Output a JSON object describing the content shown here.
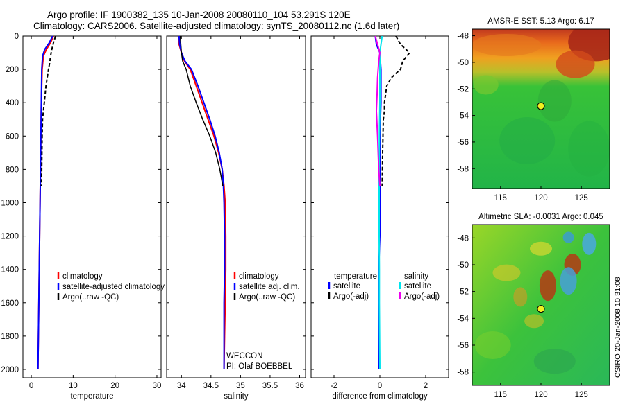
{
  "header": {
    "title_line1": "Argo profile: IF 1900382_135 10-Jan-2008 20080110_104 53.291S 120E",
    "title_line2": "Climatology: CARS2006. Satellite-adjusted climatology: synTS_20080112.nc (1.6d later)"
  },
  "timestamp": "CSIRO 20-Jan-2008 10:31:08",
  "colors": {
    "climatology": "#ff0000",
    "satellite": "#0000ff",
    "argo": "#000000",
    "salinity_diff_satellite": "#00e5ee",
    "salinity_diff_argo": "#ee00ee"
  },
  "chart_data": [
    {
      "type": "line",
      "xlabel": "temperature",
      "ylim": [
        2050,
        0
      ],
      "xlim": [
        -2,
        31
      ],
      "xticks": [
        0,
        10,
        20,
        30
      ],
      "yticks": [
        0,
        200,
        400,
        600,
        800,
        1000,
        1200,
        1400,
        1600,
        1800,
        2000
      ],
      "legend": [
        "climatology",
        "satellite-adjusted climatology",
        "Argo(..raw -QC)"
      ],
      "legend_position": "lower-right",
      "series": [
        {
          "name": "climatology",
          "style": "solid",
          "x": [
            5.3,
            4.6,
            3.6,
            2.9,
            2.6,
            2.4,
            2.3,
            2.2,
            2.1,
            2.0,
            1.9,
            1.8,
            1.7,
            1.6
          ],
          "y": [
            0,
            40,
            80,
            120,
            200,
            400,
            600,
            800,
            1000,
            1200,
            1400,
            1600,
            1800,
            2000
          ]
        },
        {
          "name": "satellite-adjusted climatology",
          "style": "solid",
          "x": [
            5.1,
            4.3,
            3.2,
            2.7,
            2.5,
            2.4,
            2.3,
            2.2,
            2.1,
            2.0,
            1.9,
            1.8,
            1.7,
            1.6
          ],
          "y": [
            0,
            40,
            80,
            120,
            200,
            400,
            600,
            800,
            1000,
            1200,
            1400,
            1600,
            1800,
            2000
          ]
        },
        {
          "name": "Argo(..raw -QC)",
          "style": "dashed",
          "x": [
            5.8,
            5.3,
            4.9,
            4.6,
            4.4,
            4.1,
            3.8,
            3.5,
            3.3,
            3.1,
            2.9,
            2.7,
            2.6,
            2.5,
            2.4
          ],
          "y": [
            0,
            40,
            80,
            120,
            160,
            200,
            250,
            300,
            350,
            400,
            450,
            500,
            600,
            800,
            900
          ]
        }
      ]
    },
    {
      "type": "line",
      "xlabel": "salinity",
      "ylim": [
        2050,
        0
      ],
      "xlim": [
        33.75,
        36.1
      ],
      "xticks": [
        34,
        34.5,
        35,
        35.5,
        36
      ],
      "yticks": [
        0,
        200,
        400,
        600,
        800,
        1000,
        1200,
        1400,
        1600,
        1800,
        2000
      ],
      "legend": [
        "climatology",
        "satellite adj. clim.",
        "Argo(..raw -QC)"
      ],
      "legend_position": "lower-right",
      "annotations": [
        "WECCON",
        "PI: Olaf BOEBBEL"
      ],
      "series": [
        {
          "name": "climatology",
          "style": "solid",
          "x": [
            33.95,
            33.96,
            34.0,
            34.05,
            34.15,
            34.25,
            34.35,
            34.45,
            34.55,
            34.63,
            34.69,
            34.72,
            34.74,
            34.75,
            34.75,
            34.74,
            34.73,
            34.72
          ],
          "y": [
            0,
            50,
            100,
            150,
            200,
            300,
            400,
            500,
            600,
            700,
            800,
            900,
            1000,
            1200,
            1400,
            1600,
            1800,
            2000
          ]
        },
        {
          "name": "satellite adj. clim.",
          "style": "solid",
          "x": [
            33.96,
            33.97,
            34.0,
            34.06,
            34.17,
            34.28,
            34.38,
            34.48,
            34.57,
            34.64,
            34.69,
            34.71,
            34.72,
            34.73,
            34.73,
            34.72,
            34.72,
            34.72
          ],
          "y": [
            0,
            50,
            100,
            150,
            200,
            300,
            400,
            500,
            600,
            700,
            800,
            900,
            1000,
            1200,
            1400,
            1600,
            1800,
            2000
          ]
        },
        {
          "name": "Argo(..raw -QC)",
          "style": "solid",
          "x": [
            33.98,
            33.99,
            34.0,
            34.02,
            34.08,
            34.15,
            34.25,
            34.36,
            34.48,
            34.58,
            34.65,
            34.7
          ],
          "y": [
            0,
            50,
            100,
            150,
            200,
            300,
            400,
            500,
            600,
            700,
            800,
            900
          ]
        }
      ]
    },
    {
      "type": "line",
      "xlabel": "difference from climatology",
      "ylim": [
        2050,
        0
      ],
      "xlim": [
        -3,
        3
      ],
      "xticks": [
        -2,
        0,
        2
      ],
      "yticks": [
        0,
        200,
        400,
        600,
        800,
        1000,
        1200,
        1400,
        1600,
        1800,
        2000
      ],
      "legend_groups": [
        {
          "heading": "temperature",
          "entries": [
            "satellite",
            "Argo(-adj)"
          ]
        },
        {
          "heading": "salinity",
          "entries": [
            "satellite",
            "Argo(-adj)"
          ]
        }
      ],
      "legend_position": "lower-center",
      "series": [
        {
          "name": "satellite",
          "group": "temperature",
          "style": "solid",
          "x": [
            -0.2,
            -0.15,
            0.0,
            0.05,
            0.05,
            0.0,
            0.0,
            0.0,
            0.0,
            -0.05,
            -0.05,
            -0.05
          ],
          "y": [
            0,
            50,
            100,
            200,
            400,
            600,
            800,
            1000,
            1200,
            1400,
            1600,
            2000
          ]
        },
        {
          "name": "Argo(-adj)",
          "group": "temperature",
          "style": "dashed",
          "x": [
            0.7,
            0.9,
            1.3,
            1.0,
            0.9,
            0.5,
            0.3,
            0.25,
            0.2,
            0.2,
            0.15,
            0.12,
            0.1
          ],
          "y": [
            0,
            50,
            100,
            150,
            200,
            250,
            300,
            350,
            400,
            450,
            500,
            700,
            900
          ]
        },
        {
          "name": "satellite",
          "group": "salinity",
          "style": "solid",
          "x": [
            0.1,
            0.05,
            0.0,
            0.0,
            0.0,
            -0.02,
            -0.03,
            -0.03,
            -0.03,
            -0.02,
            -0.02,
            0.0
          ],
          "y": [
            0,
            50,
            100,
            200,
            400,
            600,
            800,
            1000,
            1200,
            1400,
            1600,
            2000
          ]
        },
        {
          "name": "Argo(-adj)",
          "group": "salinity",
          "style": "solid",
          "x": [
            -0.2,
            -0.1,
            0.0,
            -0.05,
            -0.1,
            -0.12,
            -0.15,
            -0.1,
            -0.05,
            0.0
          ],
          "y": [
            0,
            50,
            100,
            150,
            250,
            350,
            450,
            600,
            800,
            900
          ]
        }
      ]
    },
    {
      "type": "heatmap",
      "title": "AMSR-E SST: 5.13  Argo: 6.17",
      "xlim": [
        111.5,
        128.5
      ],
      "ylim": [
        -59.5,
        -47.5
      ],
      "xticks": [
        115,
        120,
        125
      ],
      "yticks": [
        -48,
        -50,
        -52,
        -54,
        -56,
        -58
      ],
      "marker": {
        "x": 120,
        "y": -53.29
      }
    },
    {
      "type": "heatmap",
      "title": "Altimetric SLA: -0.0031  Argo: 0.045",
      "xlim": [
        111.5,
        128.5
      ],
      "ylim": [
        -59.0,
        -47.0
      ],
      "xticks": [
        115,
        120,
        125
      ],
      "yticks": [
        -48,
        -50,
        -52,
        -54,
        -56,
        -58
      ],
      "marker": {
        "x": 120,
        "y": -53.29
      }
    }
  ]
}
